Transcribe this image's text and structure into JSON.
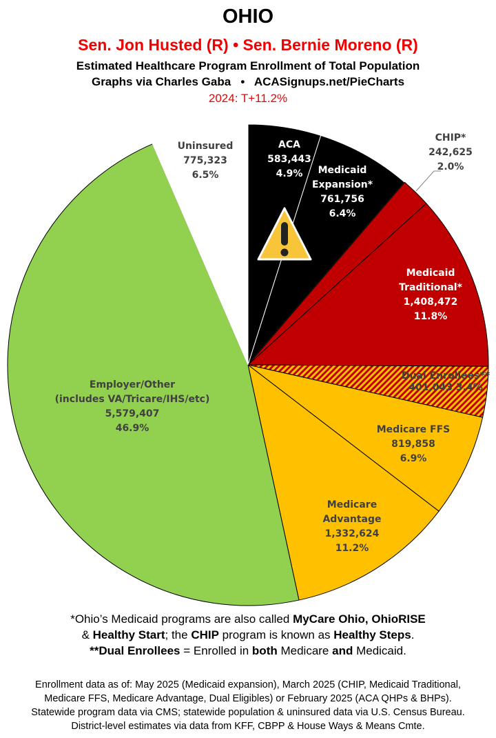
{
  "header": {
    "title": "OHIO",
    "senators": "Sen. Jon Husted (R) • Sen. Bernie Moreno (R)",
    "subtitle": "Estimated Healthcare Program Enrollment of Total Population",
    "credit": "Graphs via Charles Gaba   •   ACASignups.net/PieCharts",
    "margin": "2024: T+11.2%"
  },
  "chart_data": {
    "type": "pie",
    "title": "OHIO",
    "start": "top, clockwise",
    "slices": [
      {
        "label": "ACA",
        "value": 583443,
        "percent": 4.9,
        "pct_label": "4.9%",
        "value_label": "583,443",
        "color": "#000000",
        "text_color": "#ffffff"
      },
      {
        "label": "Medicaid Expansion*",
        "value": 761756,
        "percent": 6.4,
        "pct_label": "6.4%",
        "value_label": "761,756",
        "color": "#000000",
        "text_color": "#ffffff"
      },
      {
        "label": "CHIP*",
        "value": 242625,
        "percent": 2.0,
        "pct_label": "2.0%",
        "value_label": "242,625",
        "color": "#c00000",
        "text_color": "#404040"
      },
      {
        "label": "Medicaid Traditional*",
        "value": 1408472,
        "percent": 11.8,
        "pct_label": "11.8%",
        "value_label": "1,408,472",
        "color": "#c00000",
        "text_color": "#ffffff"
      },
      {
        "label": "Dual Enrollees**",
        "value": 401043,
        "percent": 3.4,
        "pct_label": "3.4%",
        "value_label": "401,043",
        "color": "hatched #c00000/#ffc000",
        "text_color": "#404040"
      },
      {
        "label": "Medicare FFS",
        "value": 819858,
        "percent": 6.9,
        "pct_label": "6.9%",
        "value_label": "819,858",
        "color": "#ffc000",
        "text_color": "#404040"
      },
      {
        "label": "Medicare Advantage",
        "value": 1332624,
        "percent": 11.2,
        "pct_label": "11.2%",
        "value_label": "1,332,624",
        "color": "#ffc000",
        "text_color": "#404040"
      },
      {
        "label": "Employer/Other (includes VA/Tricare/IHS/etc)",
        "value": 5579407,
        "percent": 46.9,
        "pct_label": "46.9%",
        "value_label": "5,579,407",
        "color": "#92d050",
        "text_color": "#404040"
      },
      {
        "label": "Uninsured",
        "value": 775323,
        "percent": 6.5,
        "pct_label": "6.5%",
        "value_label": "775,323",
        "color": "#ffffff",
        "text_color": "#404040"
      }
    ],
    "annotation_icon": "warning-icon"
  },
  "notes": {
    "n1_l1": "*Ohio’s Medicaid programs are also called <b>MyCare Ohio, OhioRISE</b>",
    "n1_l2": "& <b>Healthy Start</b>; the <b>CHIP</b> program is known as <b>Healthy Steps</b>.",
    "n1_l3": "<b>**Dual Enrollees</b> = Enrolled in <b>both</b> Medicare <b>and</b> Medicaid.",
    "n2_l1": "Enrollment data as of: May 2025 (Medicaid expansion), March 2025 (CHIP, Medicaid Traditional,",
    "n2_l2": "Medicare FFS, Medicare Advantage, Dual Eligibles) or February 2025 (ACA QHPs & BHPs).",
    "n2_l3": "Statewide program data via CMS; statewide population & uninsured data via U.S. Census Bureau.",
    "n2_l4": "District-level estimates via data from KFF, CBPP & House Ways & Means Cmte."
  }
}
